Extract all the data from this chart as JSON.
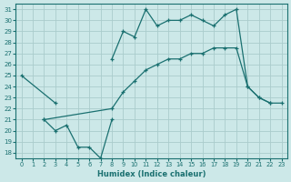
{
  "xlabel": "Humidex (Indice chaleur)",
  "bg_color": "#cce8e8",
  "line_color": "#1a7070",
  "grid_color": "#aacccc",
  "xlim": [
    -0.5,
    23.5
  ],
  "ylim": [
    17.5,
    31.5
  ],
  "yticks": [
    18,
    19,
    20,
    21,
    22,
    23,
    24,
    25,
    26,
    27,
    28,
    29,
    30,
    31
  ],
  "xticks": [
    0,
    1,
    2,
    3,
    4,
    5,
    6,
    7,
    8,
    9,
    10,
    11,
    12,
    13,
    14,
    15,
    16,
    17,
    18,
    19,
    20,
    21,
    22,
    23
  ],
  "series": [
    {
      "x": [
        0,
        3
      ],
      "y": [
        25.0,
        22.5
      ]
    },
    {
      "x": [
        2,
        3,
        4,
        5,
        6,
        7,
        8
      ],
      "y": [
        21.0,
        20.0,
        20.5,
        18.5,
        18.5,
        17.5,
        21.0
      ]
    },
    {
      "x": [
        2,
        8,
        9,
        10,
        11,
        12,
        13,
        14,
        15,
        16,
        17,
        18,
        19,
        20,
        21,
        22,
        23
      ],
      "y": [
        21.0,
        22.0,
        23.5,
        24.5,
        25.5,
        26.0,
        26.5,
        26.5,
        27.0,
        27.0,
        27.5,
        27.5,
        27.5,
        24.0,
        23.0,
        22.5,
        22.5
      ]
    },
    {
      "x": [
        8,
        9,
        10,
        11,
        12,
        13,
        14,
        15,
        16,
        17,
        18,
        19,
        20,
        21,
        22
      ],
      "y": [
        26.5,
        29.0,
        28.5,
        31.0,
        29.5,
        30.0,
        30.0,
        30.5,
        30.0,
        29.5,
        30.5,
        31.0,
        24.0,
        23.0,
        22.5
      ]
    }
  ]
}
